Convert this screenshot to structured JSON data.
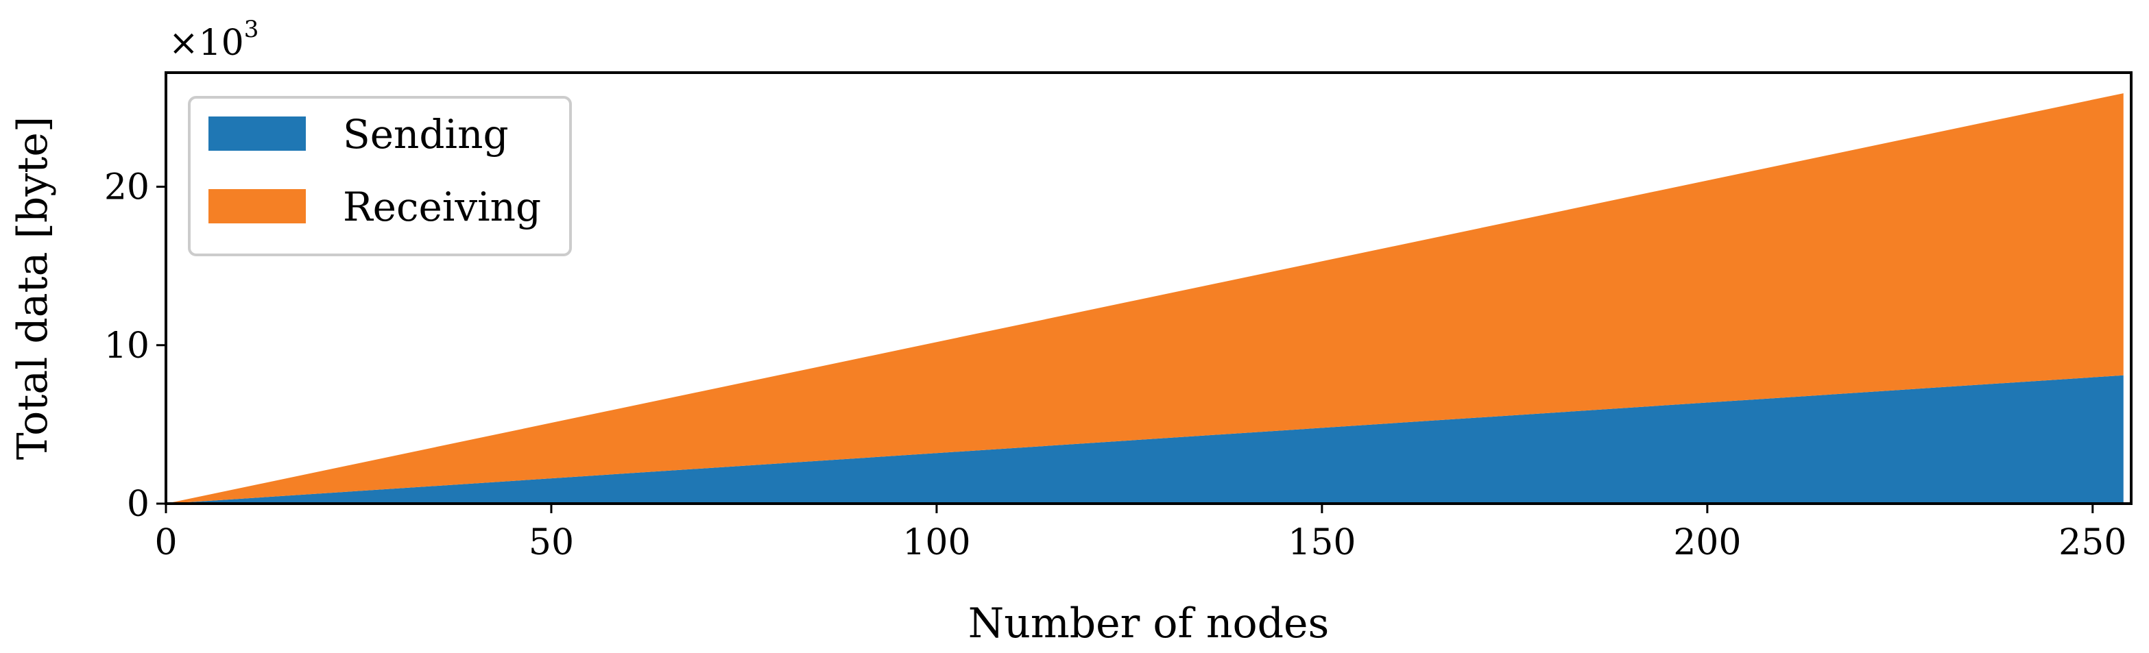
{
  "chart_data": {
    "type": "area",
    "stacked": true,
    "xlabel": "Number of nodes",
    "ylabel": "Total data [byte]",
    "y_multiplier": {
      "base": "×10",
      "exponent": "3"
    },
    "xlim": [
      0,
      255
    ],
    "ylim": [
      0,
      27.2
    ],
    "x_ticks": [
      0,
      50,
      100,
      150,
      200,
      250
    ],
    "y_ticks": [
      0,
      10,
      20
    ],
    "grid": false,
    "legend": {
      "position": "top-left"
    },
    "x": [
      0,
      254
    ],
    "series": [
      {
        "name": "Sending",
        "color": "#1f77b4",
        "values": [
          0,
          8.1
        ]
      },
      {
        "name": "Receiving",
        "color": "#f58025",
        "values": [
          0,
          17.8
        ]
      }
    ]
  }
}
